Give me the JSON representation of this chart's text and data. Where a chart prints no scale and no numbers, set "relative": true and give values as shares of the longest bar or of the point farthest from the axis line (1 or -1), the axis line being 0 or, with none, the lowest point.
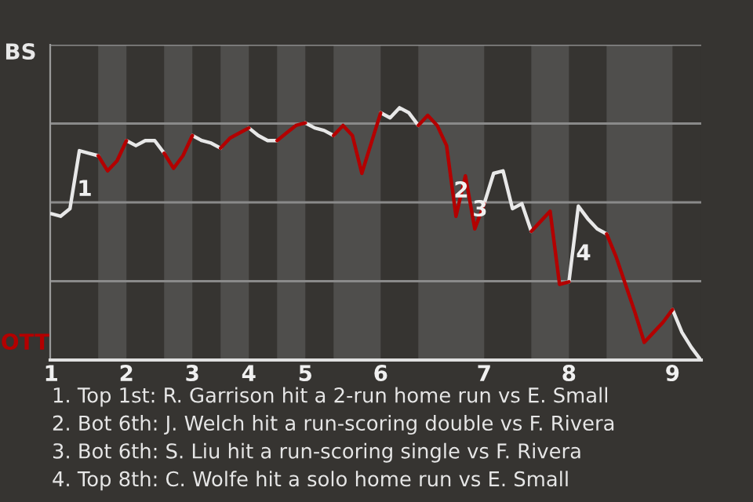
{
  "chart_data": {
    "type": "line",
    "relative": true,
    "grid": "y",
    "legend": false,
    "marker": "none",
    "line_style": "solid",
    "categories": [
      "1",
      null,
      null,
      null,
      null,
      null,
      null,
      null,
      "2",
      null,
      null,
      null,
      null,
      null,
      null,
      "3",
      null,
      null,
      null,
      null,
      null,
      "4",
      null,
      null,
      null,
      null,
      null,
      "5",
      null,
      null,
      null,
      null,
      null,
      null,
      null,
      "6",
      null,
      null,
      null,
      null,
      null,
      null,
      null,
      null,
      null,
      null,
      "7",
      null,
      null,
      null,
      null,
      null,
      null,
      null,
      null,
      "8",
      null,
      null,
      null,
      null,
      null,
      null,
      null,
      null,
      null,
      null,
      "9",
      null,
      null,
      null
    ],
    "series": [
      {
        "name": "BS",
        "color": "#e8e8e8",
        "values": [
          0.58,
          0.57,
          0.6,
          0.83,
          0.82,
          0.81,
          null,
          null,
          0.87,
          0.85,
          0.87,
          0.87,
          0.82,
          null,
          null,
          0.89,
          0.87,
          0.86,
          0.84,
          null,
          null,
          0.92,
          0.89,
          0.87,
          0.87,
          null,
          null,
          0.94,
          0.92,
          0.91,
          0.89,
          null,
          null,
          null,
          null,
          0.98,
          0.96,
          1.0,
          0.98,
          0.93,
          null,
          null,
          null,
          null,
          null,
          null,
          0.62,
          0.74,
          0.75,
          0.6,
          0.62,
          0.51,
          null,
          null,
          null,
          0.31,
          0.61,
          0.56,
          0.52,
          0.5,
          null,
          null,
          null,
          null,
          null,
          null,
          0.2,
          0.11,
          0.05,
          0.0
        ]
      },
      {
        "name": "OTT",
        "color": "#b30000",
        "values": [
          null,
          null,
          null,
          null,
          null,
          0.81,
          0.75,
          0.79,
          0.87,
          null,
          null,
          null,
          0.82,
          0.76,
          0.81,
          0.89,
          null,
          null,
          0.84,
          0.88,
          0.9,
          0.92,
          null,
          null,
          0.87,
          0.9,
          0.93,
          0.94,
          null,
          null,
          0.89,
          0.93,
          0.89,
          0.74,
          0.86,
          0.98,
          null,
          null,
          null,
          0.93,
          0.97,
          0.93,
          0.85,
          0.57,
          0.73,
          0.52,
          0.62,
          null,
          null,
          null,
          null,
          0.51,
          0.55,
          0.59,
          0.3,
          0.31,
          null,
          null,
          null,
          0.5,
          0.41,
          0.3,
          0.19,
          0.07,
          0.11,
          0.15,
          0.2,
          null,
          null,
          null
        ]
      }
    ],
    "annotations": [
      "1",
      "2",
      "3",
      "4",
      "1. Top 1st: R. Garrison hit a 2-run home run vs E. Small",
      "2. Bot 6th: J. Welch hit a run-scoring double vs F. Rivera",
      "3. Bot 6th: S. Liu hit a run-scoring single vs F. Rivera",
      "4. Top 8th: C. Wolfe hit a solo home run vs E. Small"
    ]
  }
}
